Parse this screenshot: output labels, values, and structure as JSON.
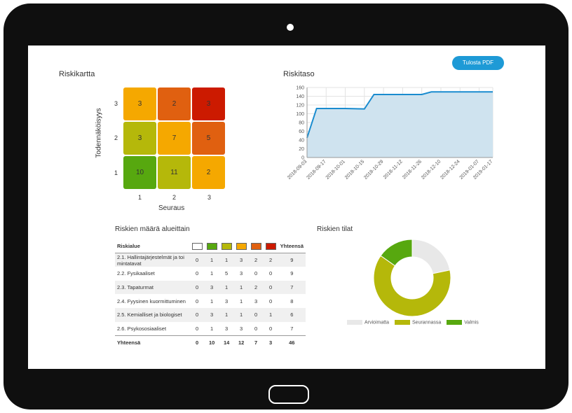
{
  "header": {
    "print_pdf_label": "Tulosta PDF"
  },
  "risk_map": {
    "title": "Riskikartta",
    "y_label": "Todennäköisyys",
    "x_label": "Seuraus",
    "y_ticks": [
      "3",
      "2",
      "1"
    ],
    "x_ticks": [
      "1",
      "2",
      "3"
    ],
    "cells": [
      {
        "row": 3,
        "col": 1,
        "value": "3",
        "color": "#f5a800"
      },
      {
        "row": 3,
        "col": 2,
        "value": "2",
        "color": "#e06010"
      },
      {
        "row": 3,
        "col": 3,
        "value": "3",
        "color": "#cc1a00"
      },
      {
        "row": 2,
        "col": 1,
        "value": "3",
        "color": "#b5b80a"
      },
      {
        "row": 2,
        "col": 2,
        "value": "7",
        "color": "#f5a800"
      },
      {
        "row": 2,
        "col": 3,
        "value": "5",
        "color": "#e06010"
      },
      {
        "row": 1,
        "col": 1,
        "value": "10",
        "color": "#57a80f"
      },
      {
        "row": 1,
        "col": 2,
        "value": "11",
        "color": "#b5b80a"
      },
      {
        "row": 1,
        "col": 3,
        "value": "2",
        "color": "#f5a800"
      }
    ]
  },
  "risk_level": {
    "title": "Riskitaso",
    "chart_data": {
      "type": "area",
      "x": [
        "2018-09-03",
        "2018-09-10",
        "2018-09-17",
        "2018-10-01",
        "2018-10-15",
        "2018-10-22",
        "2018-10-29",
        "2018-11-12",
        "2018-11-26",
        "2018-12-03",
        "2018-12-10",
        "2018-12-24",
        "2019-01-07",
        "2019-01-17"
      ],
      "values": [
        45,
        112,
        112,
        112,
        111,
        144,
        144,
        144,
        144,
        150,
        150,
        150,
        150,
        150
      ],
      "x_tick_labels": [
        "2018-09-03",
        "2018-09-17",
        "2018-10-01",
        "2018-10-15",
        "2018-10-29",
        "2018-11-12",
        "2018-11-26",
        "2018-12-10",
        "2018-12-24",
        "2019-01-07",
        "2019-01-17"
      ],
      "y_ticks": [
        0,
        20,
        40,
        60,
        80,
        100,
        120,
        140,
        160
      ],
      "ylim": [
        0,
        160
      ],
      "line_color": "#1a8ccf",
      "fill_color": "#cfe3ef",
      "grid": true
    }
  },
  "risk_table": {
    "title": "Riskien määrä alueittain",
    "col_header": "Riskialue",
    "total_header": "Yhteensä",
    "swatch_colors": [
      "#ffffff",
      "#57a80f",
      "#b5b80a",
      "#f5a800",
      "#e06010",
      "#cc1a00"
    ],
    "rows": [
      {
        "name": "2.1. Hallintajärjestelmät ja toi mintatavat",
        "counts": [
          "0",
          "1",
          "1",
          "3",
          "2",
          "2"
        ],
        "total": "9"
      },
      {
        "name": "2.2. Fysikaaliset",
        "counts": [
          "0",
          "1",
          "5",
          "3",
          "0",
          "0"
        ],
        "total": "9"
      },
      {
        "name": "2.3. Tapaturmat",
        "counts": [
          "0",
          "3",
          "1",
          "1",
          "2",
          "0"
        ],
        "total": "7"
      },
      {
        "name": "2.4. Fyysinen kuormittuminen",
        "counts": [
          "0",
          "1",
          "3",
          "1",
          "3",
          "0"
        ],
        "total": "8"
      },
      {
        "name": "2.5. Kemialliset ja biologiset",
        "counts": [
          "0",
          "3",
          "1",
          "1",
          "0",
          "1"
        ],
        "total": "6"
      },
      {
        "name": "2.6. Psykososiaaliset",
        "counts": [
          "0",
          "1",
          "3",
          "3",
          "0",
          "0"
        ],
        "total": "7"
      }
    ],
    "sum_row": {
      "name": "Yhteensä",
      "counts": [
        "0",
        "10",
        "14",
        "12",
        "7",
        "3"
      ],
      "total": "46"
    }
  },
  "risk_status": {
    "title": "Riskien tilat",
    "chart_data": {
      "type": "pie",
      "categories": [
        "Arvioimatta",
        "Seurannassa",
        "Valmis"
      ],
      "values": [
        10,
        29,
        7
      ],
      "colors": [
        "#e8e8e8",
        "#b5b80a",
        "#57a80f"
      ],
      "legend_position": "bottom"
    }
  }
}
